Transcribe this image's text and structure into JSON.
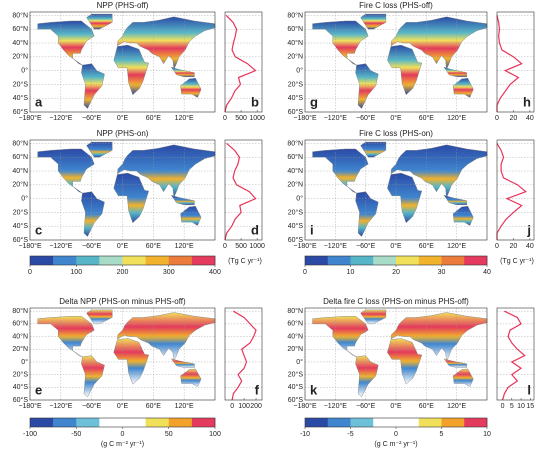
{
  "chart_data": [
    {
      "type": "map-profile",
      "title": "NPP (PHS-off)",
      "map_letter": "a",
      "profile_letter": "b",
      "xlim": [
        0,
        1150
      ],
      "xticks": [
        0,
        500,
        1000
      ],
      "values": [
        0,
        50,
        200,
        300,
        480,
        420,
        950,
        700,
        320,
        220,
        260,
        320,
        360,
        250,
        40
      ]
    },
    {
      "type": "map-profile",
      "title": "Fire C loss (PHS-off)",
      "map_letter": "g",
      "profile_letter": "h",
      "xlim": [
        0,
        45
      ],
      "xticks": [
        0,
        20,
        40
      ],
      "values": [
        0,
        0,
        4,
        10,
        16,
        26,
        10,
        30,
        20,
        6,
        3,
        2,
        3,
        2,
        0
      ]
    },
    {
      "type": "map-profile",
      "title": "NPP (PHS-on)",
      "map_letter": "c",
      "profile_letter": "d",
      "xlim": [
        0,
        1150
      ],
      "xticks": [
        0,
        500,
        1000
      ],
      "values": [
        0,
        50,
        210,
        310,
        500,
        460,
        950,
        760,
        360,
        250,
        300,
        400,
        450,
        300,
        50
      ]
    },
    {
      "type": "map-profile",
      "title": "Fire C loss (PHS-on)",
      "map_letter": "i",
      "profile_letter": "j",
      "xlim": [
        0,
        45
      ],
      "xticks": [
        0,
        20,
        40
      ],
      "values": [
        0,
        0,
        5,
        11,
        20,
        30,
        12,
        35,
        25,
        8,
        5,
        5,
        8,
        5,
        0
      ]
    },
    {
      "type": "map-profile",
      "title": "Delta NPP (PHS-on minus PHS-off)",
      "map_letter": "e",
      "profile_letter": "f",
      "xlim": [
        -60,
        250
      ],
      "xticks": [
        0,
        100,
        200
      ],
      "values": [
        0,
        10,
        50,
        80,
        50,
        100,
        120,
        100,
        80,
        150,
        180,
        200,
        150,
        100,
        10
      ]
    },
    {
      "type": "map-profile",
      "title": "Delta fire C loss (PHS-on minus PHS-off)",
      "map_letter": "k",
      "profile_letter": "l",
      "xlim": [
        -3,
        17
      ],
      "xticks": [
        0,
        5,
        10,
        15
      ],
      "values": [
        0,
        1,
        3,
        8,
        5,
        10,
        5,
        12,
        8,
        5,
        3,
        4,
        10,
        8,
        1
      ]
    }
  ],
  "profile_lat": [
    -60,
    -50,
    -40,
    -30,
    -20,
    -10,
    0,
    10,
    20,
    30,
    40,
    50,
    60,
    70,
    80
  ],
  "map_axes": {
    "xlim": [
      -180,
      180
    ],
    "ylim": [
      -60,
      85
    ],
    "xticks": [
      {
        "value": -180,
        "label": "−180°E"
      },
      {
        "value": -120,
        "label": "−120°E"
      },
      {
        "value": -60,
        "label": "−60°E"
      },
      {
        "value": 0,
        "label": "0°E"
      },
      {
        "value": 60,
        "label": "60°E"
      },
      {
        "value": 120,
        "label": "120°E"
      }
    ],
    "yticks": [
      {
        "value": 80,
        "label": "80°N"
      },
      {
        "value": 60,
        "label": "60°N"
      },
      {
        "value": 40,
        "label": "40°N"
      },
      {
        "value": 20,
        "label": "20°N"
      },
      {
        "value": 0,
        "label": "0°"
      },
      {
        "value": -20,
        "label": "20°S"
      },
      {
        "value": -40,
        "label": "40°S"
      },
      {
        "value": -60,
        "label": "60°S"
      }
    ]
  },
  "colorbars": [
    {
      "lim": [
        0,
        400
      ],
      "ticks": [
        0,
        100,
        200,
        300,
        400
      ],
      "units": "(Tg C yr⁻¹)",
      "colors": [
        "#2b4aa6",
        "#3f86cf",
        "#56b6c8",
        "#a8dcc6",
        "#f1e15a",
        "#f2b22b",
        "#eb7c3c",
        "#e33a5d"
      ]
    },
    {
      "lim": [
        0,
        40
      ],
      "ticks": [
        0,
        10,
        20,
        30,
        40
      ],
      "units": "(Tg C yr⁻¹)",
      "colors": [
        "#2b4aa6",
        "#3f86cf",
        "#56b6c8",
        "#a8dcc6",
        "#f1e15a",
        "#f2b22b",
        "#eb7c3c",
        "#e33a5d"
      ]
    },
    {
      "lim": [
        -100,
        100
      ],
      "ticks": [
        -100,
        -50,
        0,
        50,
        100
      ],
      "units": "(g C m⁻² yr⁻¹)",
      "colors": [
        "#2b4aa6",
        "#3f86cf",
        "#6cc0d8",
        "#ffffff",
        "#ffffff",
        "#f1e15a",
        "#f2a22b",
        "#e33a5d"
      ]
    },
    {
      "lim": [
        -10,
        10
      ],
      "ticks": [
        -10,
        -5,
        0,
        5,
        10
      ],
      "units": "(g C m⁻² yr⁻¹)",
      "colors": [
        "#2b4aa6",
        "#3f86cf",
        "#6cc0d8",
        "#ffffff",
        "#ffffff",
        "#f1e15a",
        "#f2a22b",
        "#e33a5d"
      ]
    }
  ]
}
